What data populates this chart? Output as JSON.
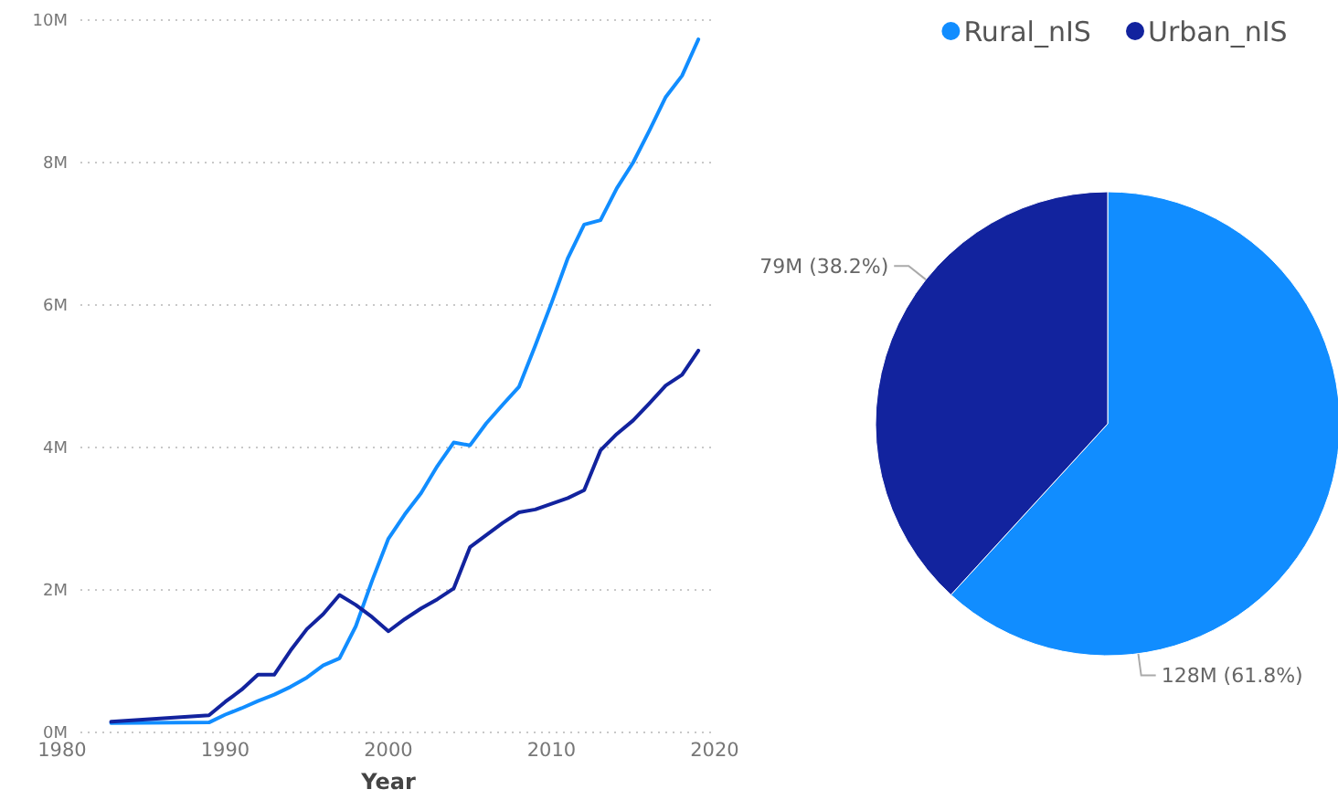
{
  "chart_data": [
    {
      "type": "line",
      "xlabel": "Year",
      "x": [
        1983,
        1989,
        1990,
        1991,
        1992,
        1993,
        1994,
        1995,
        1996,
        1997,
        1998,
        1999,
        2000,
        2001,
        2002,
        2003,
        2004,
        2005,
        2006,
        2007,
        2008,
        2009,
        2010,
        2011,
        2012,
        2013,
        2014,
        2015,
        2016,
        2017,
        2018,
        2019
      ],
      "series": [
        {
          "color": "#118dff",
          "values": [
            0.13,
            0.14,
            0.25,
            0.34,
            0.44,
            0.53,
            0.64,
            0.77,
            0.94,
            1.04,
            1.49,
            2.13,
            2.72,
            3.06,
            3.36,
            3.74,
            4.07,
            4.03,
            4.34,
            4.6,
            4.85,
            5.43,
            6.03,
            6.66,
            7.13,
            7.19,
            7.64,
            8.0,
            8.45,
            8.92,
            9.22,
            9.73
          ]
        },
        {
          "color": "#12239e",
          "values": [
            0.15,
            0.24,
            0.43,
            0.6,
            0.81,
            0.81,
            1.15,
            1.45,
            1.66,
            1.93,
            1.79,
            1.62,
            1.42,
            1.59,
            1.74,
            1.87,
            2.02,
            2.6,
            2.77,
            2.94,
            3.09,
            3.13,
            3.21,
            3.29,
            3.4,
            3.96,
            4.19,
            4.38,
            4.62,
            4.87,
            5.02,
            5.36
          ]
        }
      ],
      "xlim": [
        1980,
        2020
      ],
      "xticks": [
        1980,
        1990,
        2000,
        2010,
        2020
      ],
      "ylim": [
        0,
        10
      ],
      "yticks": [
        {
          "value": 0,
          "label": "0M"
        },
        {
          "value": 2,
          "label": "2M"
        },
        {
          "value": 4,
          "label": "4M"
        },
        {
          "value": 6,
          "label": "6M"
        },
        {
          "value": 8,
          "label": "8M"
        },
        {
          "value": 10,
          "label": "10M"
        }
      ],
      "grid": "y",
      "line_style": "solid",
      "marker": "none"
    },
    {
      "type": "pie",
      "categories": [
        "Rural_nIS",
        "Urban_nIS"
      ],
      "values": [
        61.8,
        38.2
      ],
      "colors": [
        "#118dff",
        "#12239e"
      ],
      "value_labels": [
        "128M (61.8%)",
        "79M (38.2%)"
      ],
      "legend": "top"
    }
  ]
}
